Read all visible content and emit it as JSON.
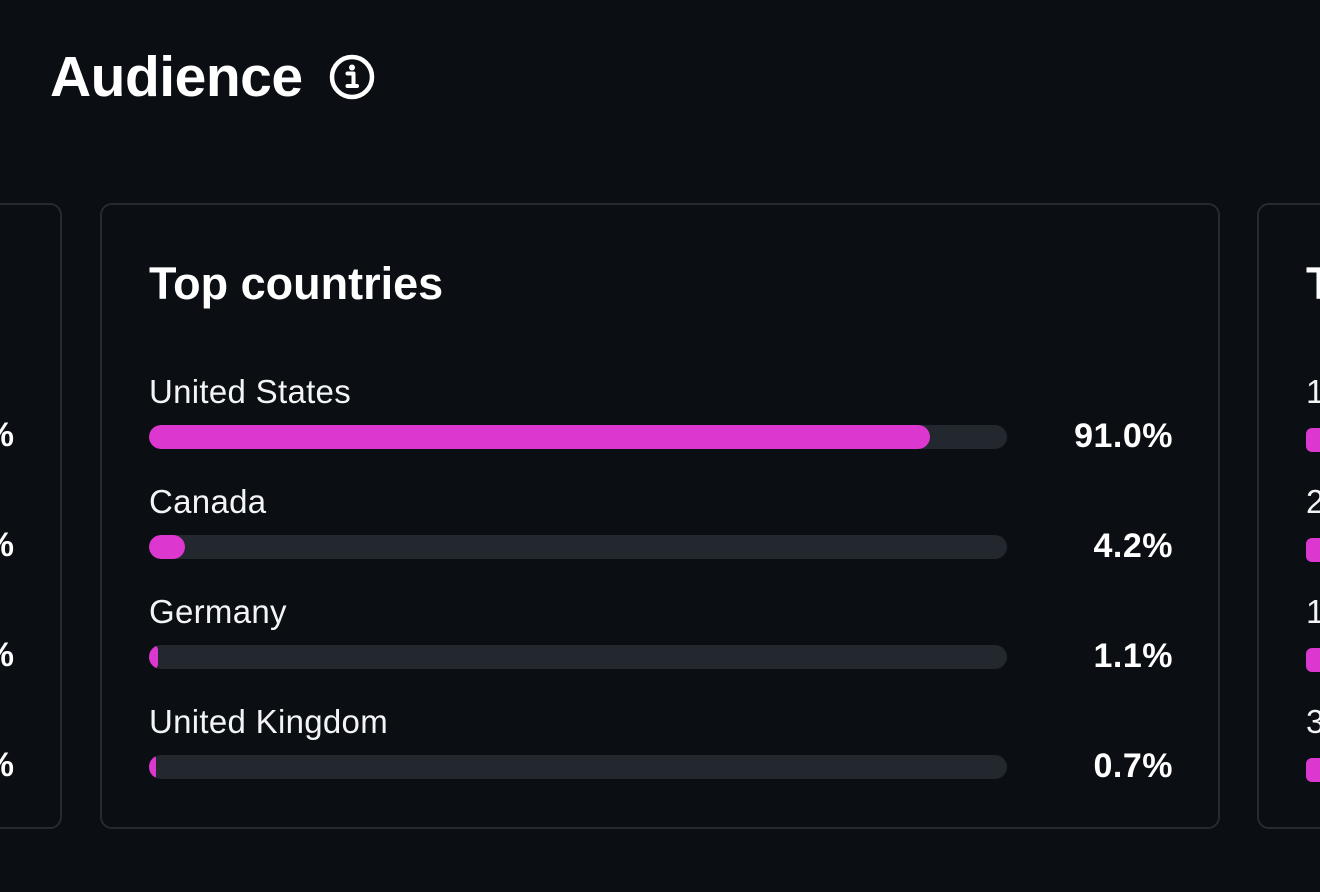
{
  "header": {
    "title": "Audience",
    "info_icon": "info-circle-icon"
  },
  "left_card": {
    "values": [
      "%",
      "%",
      "%",
      "%"
    ]
  },
  "top_countries": {
    "title": "Top countries",
    "accent_color": "#dc37cf",
    "track_color": "#23272e",
    "rows": [
      {
        "label": "United States",
        "value": "91.0%",
        "fraction": 0.91
      },
      {
        "label": "Canada",
        "value": "4.2%",
        "fraction": 0.042
      },
      {
        "label": "Germany",
        "value": "1.1%",
        "fraction": 0.011
      },
      {
        "label": "United Kingdom",
        "value": "0.7%",
        "fraction": 0.007
      }
    ]
  },
  "right_card": {
    "title": "T",
    "rows": [
      {
        "label": "1"
      },
      {
        "label": "2"
      },
      {
        "label": "1"
      },
      {
        "label": "3"
      }
    ]
  }
}
